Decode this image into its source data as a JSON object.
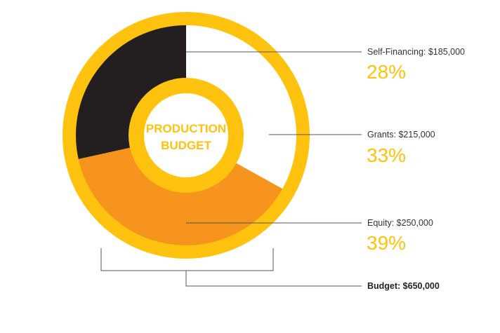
{
  "colors": {
    "ring": "#ffc20e",
    "self_financing": "#231f20",
    "grants": "#ffffff",
    "equity": "#f7941d",
    "line": "#555555",
    "percent_text": "#ffc20e"
  },
  "chart_data": {
    "type": "pie",
    "variant": "donut",
    "center_title_line1": "PRODUCTION",
    "center_title_line2": "BUDGET",
    "slices": [
      {
        "name": "Self-Financing",
        "amount_label": "Self-Financing: $185,000",
        "amount": 185000,
        "percent_label": "28%",
        "percent": 28,
        "color": "#231f20"
      },
      {
        "name": "Grants",
        "amount_label": "Grants: $215,000",
        "amount": 215000,
        "percent_label": "33%",
        "percent": 33,
        "color": "#ffffff"
      },
      {
        "name": "Equity",
        "amount_label": "Equity: $250,000",
        "amount": 250000,
        "percent_label": "39%",
        "percent": 39,
        "color": "#f7941d"
      }
    ],
    "total_label": "Budget: $650,000",
    "total": 650000
  }
}
